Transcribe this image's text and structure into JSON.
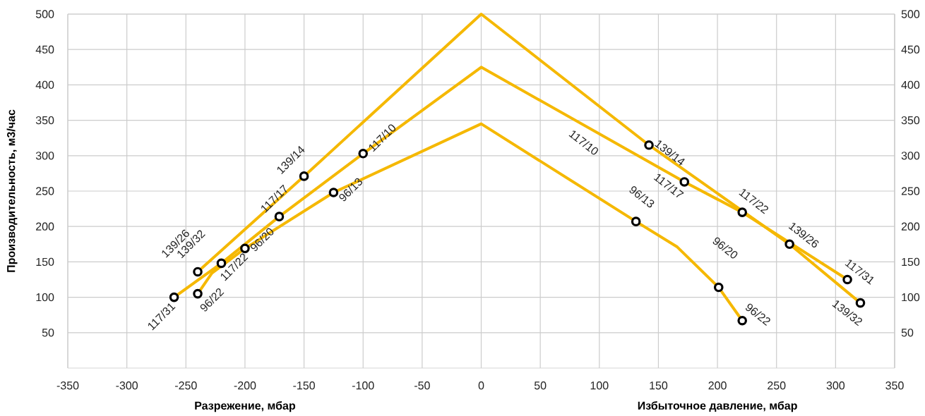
{
  "chart_data": {
    "type": "line",
    "xlabel": "Разрежение, мбар",
    "ylabel": "Производительность, м3/час",
    "xlim": [
      -350,
      350
    ],
    "xticks": [
      -350,
      -300,
      -250,
      -200,
      -150,
      -100,
      -50,
      0,
      50,
      100,
      150,
      200,
      250,
      300,
      350
    ],
    "ylim": [
      0,
      500
    ],
    "yticks": [
      50,
      100,
      150,
      200,
      250,
      300,
      350,
      400,
      450,
      500
    ],
    "y2lim": [
      0,
      500
    ],
    "y2ticks": [
      50,
      100,
      150,
      200,
      250,
      300,
      350,
      400,
      450,
      500
    ],
    "grid": true,
    "marker": "none",
    "line_style": "solid",
    "series": [
      {
        "type": "line",
        "color": "#f5b800",
        "x": [
          -240,
          -150,
          0,
          142,
          261,
          321
        ],
        "values": [
          136,
          271,
          500,
          315,
          175,
          92
        ]
      },
      {
        "type": "line",
        "color": "#f5b800",
        "x": [
          -260,
          -220,
          -171,
          -100,
          0,
          172,
          221,
          310
        ],
        "values": [
          100,
          148,
          214,
          303,
          425,
          263,
          220,
          125
        ]
      },
      {
        "type": "line",
        "color": "#f5b800",
        "x": [
          -240,
          -228,
          -200,
          -125,
          0,
          131,
          166,
          201,
          221
        ],
        "values": [
          105,
          134,
          169,
          248,
          345,
          207,
          171,
          114,
          67
        ]
      },
      {
        "type": "scatter",
        "color": "#000000",
        "marker": "circle",
        "x": [
          -260,
          -240,
          -240,
          -220,
          -200,
          -171,
          -150,
          -125,
          -100,
          142,
          172,
          221,
          261,
          310,
          321,
          131,
          201,
          221
        ],
        "values": [
          100,
          136,
          105,
          148,
          169,
          214,
          271,
          248,
          303,
          315,
          263,
          220,
          175,
          125,
          92,
          207,
          114,
          67
        ]
      }
    ],
    "annotations": [
      {
        "text": "117/31",
        "x": -260,
        "y": 100
      },
      {
        "text": "139/26",
        "x": -240,
        "y": 136
      },
      {
        "text": "139/32",
        "x": -240,
        "y": 136
      },
      {
        "text": "96/22",
        "x": -240,
        "y": 105
      },
      {
        "text": "117/22",
        "x": -220,
        "y": 148
      },
      {
        "text": "96/20",
        "x": -200,
        "y": 169
      },
      {
        "text": "117/17",
        "x": -171,
        "y": 214
      },
      {
        "text": "139/14",
        "x": -150,
        "y": 271
      },
      {
        "text": "96/13",
        "x": -125,
        "y": 248
      },
      {
        "text": "117/10",
        "x": -100,
        "y": 303
      },
      {
        "text": "139/14",
        "x": 142,
        "y": 315
      },
      {
        "text": "117/10",
        "x": 95,
        "y": 336
      },
      {
        "text": "117/17",
        "x": 172,
        "y": 263
      },
      {
        "text": "117/22",
        "x": 221,
        "y": 220
      },
      {
        "text": "139/26",
        "x": 261,
        "y": 175
      },
      {
        "text": "117/31",
        "x": 310,
        "y": 125
      },
      {
        "text": "139/32",
        "x": 321,
        "y": 92
      },
      {
        "text": "96/13",
        "x": 131,
        "y": 207
      },
      {
        "text": "96/20",
        "x": 201,
        "y": 114
      },
      {
        "text": "96/22",
        "x": 221,
        "y": 67
      },
      "Избыточное давление, мбар"
    ]
  }
}
